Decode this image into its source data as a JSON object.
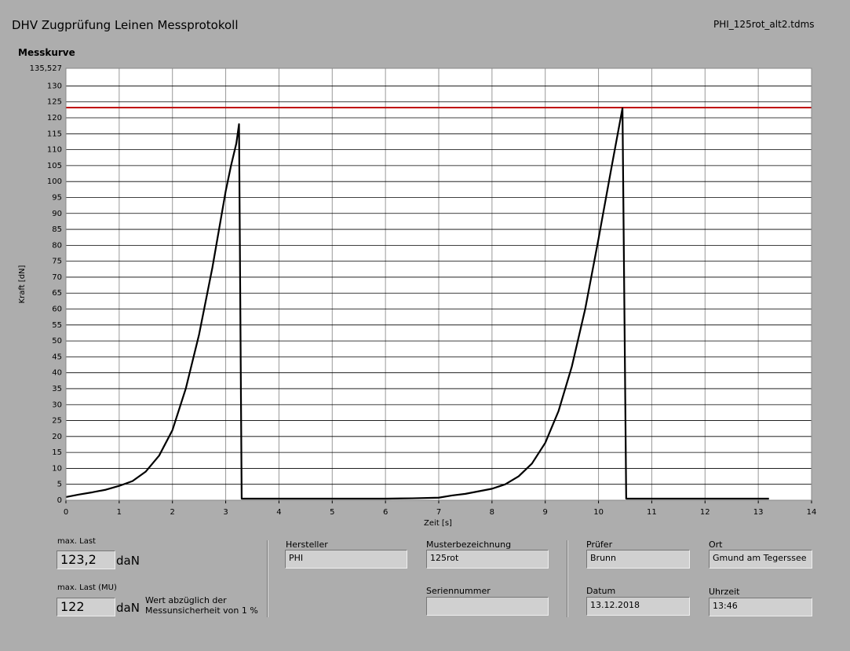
{
  "header": {
    "title": "DHV Zugprüfung Leinen Messprotokoll",
    "file": "PHI_125rot_alt2.tdms"
  },
  "chart_data": {
    "type": "line",
    "title": "Messkurve",
    "x_label": "Zeit [s]",
    "y_label": "Kraft [dN]",
    "xlim": [
      0,
      14
    ],
    "xticks": [
      0,
      1,
      2,
      3,
      4,
      5,
      6,
      7,
      8,
      9,
      10,
      11,
      12,
      13,
      14
    ],
    "ylim": [
      0,
      135.527
    ],
    "yticks": [
      0,
      5,
      10,
      15,
      20,
      25,
      30,
      35,
      40,
      45,
      50,
      55,
      60,
      65,
      70,
      75,
      80,
      85,
      90,
      95,
      100,
      105,
      110,
      115,
      120,
      125,
      130,
      {
        "value": 135.527,
        "label": "135,527"
      }
    ],
    "grid": true,
    "series": [
      {
        "color": "#000000",
        "x": [
          0,
          0.25,
          0.5,
          0.75,
          1,
          1.25,
          1.5,
          1.75,
          2,
          2.25,
          2.5,
          2.75,
          3,
          3.1,
          3.2,
          3.25,
          3.3,
          4,
          5,
          6,
          6.5,
          7,
          7.25,
          7.5,
          7.75,
          8,
          8.25,
          8.5,
          8.75,
          9,
          9.25,
          9.5,
          9.75,
          10,
          10.25,
          10.45,
          10.52,
          11,
          12,
          13,
          13.2
        ],
        "values": [
          1,
          1.8,
          2.5,
          3.3,
          4.5,
          6,
          9,
          14,
          22,
          35,
          52,
          73,
          97,
          105,
          112,
          118,
          0.5,
          0.5,
          0.5,
          0.5,
          0.6,
          0.8,
          1.5,
          2,
          2.8,
          3.6,
          5,
          7.5,
          11.5,
          18,
          28,
          42,
          60,
          82,
          105,
          123,
          0.5,
          0.5,
          0.5,
          0.5,
          0.5
        ]
      }
    ],
    "hline": {
      "y": 123.2,
      "color": "#c00000"
    }
  },
  "results": {
    "max_last": {
      "label": "max. Last",
      "value": "123,2",
      "unit": "daN"
    },
    "max_last_mu": {
      "label": "max. Last (MU)",
      "value": "122",
      "unit": "daN",
      "note": "Wert abzüglich der\nMessunsicherheit von 1 %"
    }
  },
  "fields": [
    {
      "label": "Hersteller",
      "value": "PHI"
    },
    {
      "label": "Musterbezeichnung",
      "value": "125rot"
    },
    {
      "label": "Seriennummer"
    },
    {
      "label": "Prüfer",
      "value": "Brunn"
    },
    {
      "label": "Ort",
      "value": "Gmund am Tegerssee"
    },
    {
      "label": "Datum",
      "value": "13.12.2018"
    },
    {
      "label": "Uhrzeit",
      "value": "13:46"
    }
  ]
}
